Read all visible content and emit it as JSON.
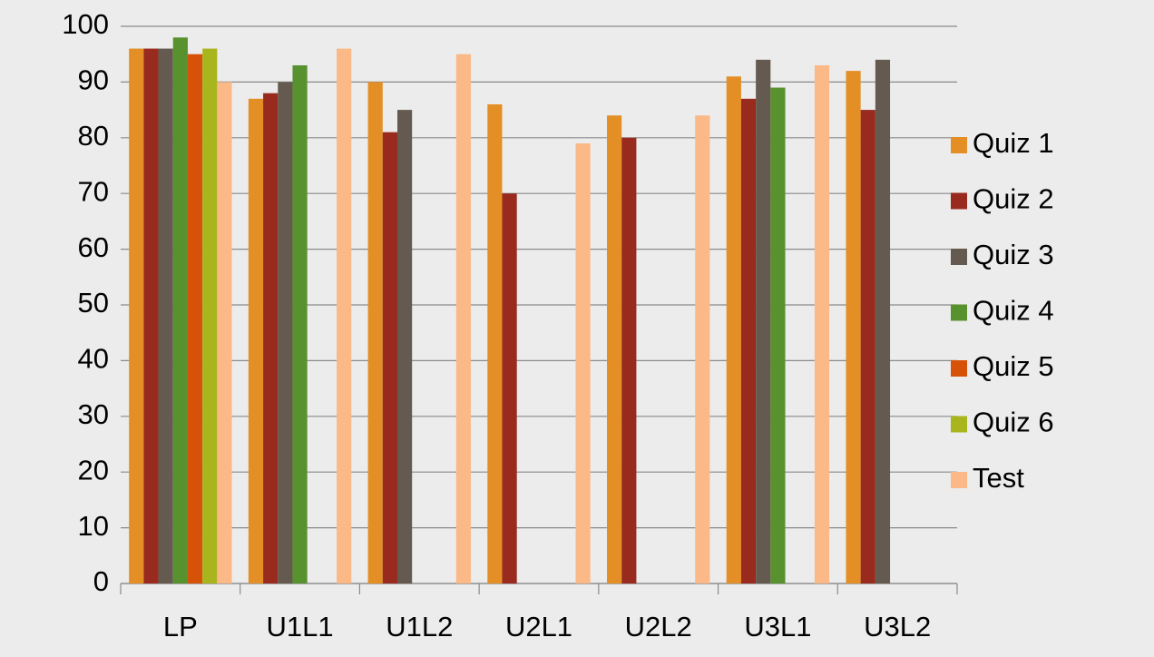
{
  "chart_data": {
    "type": "bar",
    "categories": [
      "LP",
      "U1L1",
      "U1L2",
      "U2L1",
      "U2L2",
      "U3L1",
      "U3L2"
    ],
    "series": [
      {
        "name": "Quiz 1",
        "color": "#e48f25",
        "values": [
          96,
          87,
          90,
          86,
          84,
          91,
          92
        ]
      },
      {
        "name": "Quiz 2",
        "color": "#982a1e",
        "values": [
          96,
          88,
          81,
          70,
          80,
          87,
          85
        ]
      },
      {
        "name": "Quiz 3",
        "color": "#655a50",
        "values": [
          96,
          90,
          85,
          null,
          null,
          94,
          94
        ]
      },
      {
        "name": "Quiz 4",
        "color": "#58922f",
        "values": [
          98,
          93,
          null,
          null,
          null,
          89,
          null
        ]
      },
      {
        "name": "Quiz 5",
        "color": "#d65209",
        "values": [
          95,
          null,
          null,
          null,
          null,
          null,
          null
        ]
      },
      {
        "name": "Quiz 6",
        "color": "#a8b51c",
        "values": [
          96,
          null,
          null,
          null,
          null,
          null,
          null
        ]
      },
      {
        "name": "Test",
        "color": "#fbb987",
        "values": [
          90,
          96,
          95,
          79,
          84,
          93,
          null
        ]
      }
    ],
    "ylim": [
      0,
      100
    ],
    "yticks": [
      0,
      10,
      20,
      30,
      40,
      50,
      60,
      70,
      80,
      90,
      100
    ],
    "grid": true,
    "legend": "right"
  }
}
